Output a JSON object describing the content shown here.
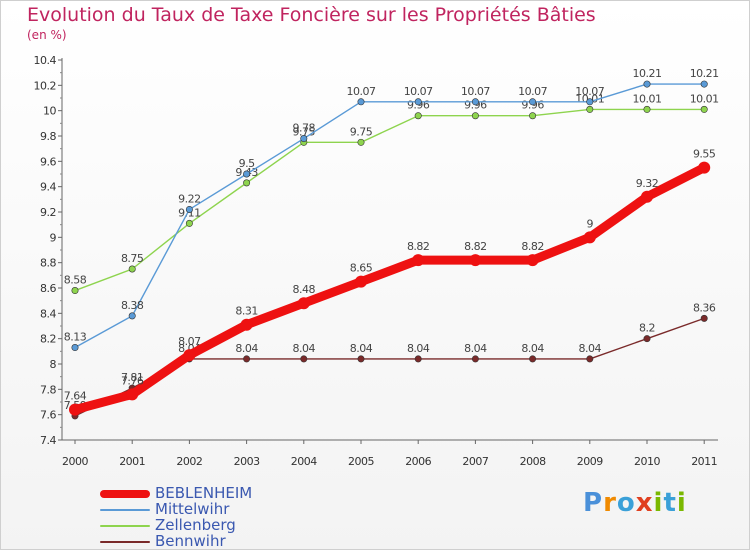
{
  "title": "Evolution du Taux de Taxe Foncière sur les Propriétés Bâties",
  "subtitle": "(en %)",
  "logo": {
    "text": "Proxiti",
    "letters": [
      "P",
      "r",
      "o",
      "x",
      "i",
      "t",
      "i"
    ],
    "colors": [
      "#4a90d9",
      "#f08a00",
      "#3aa0d8",
      "#e04020",
      "#7ab800",
      "#3aa0d8",
      "#7ab800"
    ]
  },
  "chart_data": {
    "type": "line",
    "title": "Evolution du Taux de Taxe Foncière sur les Propriétés Bâties",
    "ylabel": "(en %)",
    "categories": [
      "2000",
      "2001",
      "2002",
      "2003",
      "2004",
      "2005",
      "2006",
      "2007",
      "2008",
      "2009",
      "2010",
      "2011"
    ],
    "ylim": [
      7.4,
      10.4
    ],
    "yticks": [
      "7.4",
      "7.6",
      "7.8",
      "8",
      "8.2",
      "8.4",
      "8.6",
      "8.8",
      "9",
      "9.2",
      "9.4",
      "9.6",
      "9.8",
      "10",
      "10.2",
      "10.4"
    ],
    "series": [
      {
        "name": "Zellenberg",
        "color": "#8ed44e",
        "values": [
          8.58,
          8.75,
          9.11,
          9.43,
          9.75,
          9.75,
          9.96,
          9.96,
          9.96,
          10.01,
          10.01,
          10.01
        ],
        "labels": [
          "8.58",
          "8.75",
          "9.11",
          "9.43",
          "9.75",
          "9.75",
          "9.96",
          "9.96",
          "9.96",
          "10.01",
          "10.01",
          "10.01"
        ]
      },
      {
        "name": "Mittelwihr",
        "color": "#5a9ad6",
        "values": [
          8.13,
          8.38,
          9.22,
          9.5,
          9.78,
          10.07,
          10.07,
          10.07,
          10.07,
          10.07,
          10.21,
          10.21
        ],
        "labels": [
          "8.13",
          "8.38",
          "9.22",
          "9.5",
          "9.78",
          "10.07",
          "10.07",
          "10.07",
          "10.07",
          "10.07",
          "10.21",
          "10.21"
        ]
      },
      {
        "name": "Bennwihr",
        "color": "#7a2a2a",
        "values": [
          7.59,
          7.81,
          8.04,
          8.04,
          8.04,
          8.04,
          8.04,
          8.04,
          8.04,
          8.04,
          8.2,
          8.36
        ],
        "labels": [
          "7.59",
          "7.81",
          "8.04",
          "8.04",
          "8.04",
          "8.04",
          "8.04",
          "8.04",
          "8.04",
          "8.04",
          "8.2",
          "8.36"
        ]
      },
      {
        "name": "BEBLENHEIM",
        "color": "#ee1111",
        "values": [
          7.64,
          7.76,
          8.07,
          8.31,
          8.48,
          8.65,
          8.82,
          8.82,
          8.82,
          9,
          9.32,
          9.55
        ],
        "labels": [
          "7.64",
          "7.76",
          "8.07",
          "8.31",
          "8.48",
          "8.65",
          "8.82",
          "8.82",
          "8.82",
          "9",
          "9.32",
          "9.55"
        ]
      }
    ],
    "legend": [
      {
        "name": "BEBLENHEIM",
        "color": "#ee1111"
      },
      {
        "name": "Mittelwihr",
        "color": "#5a9ad6"
      },
      {
        "name": "Zellenberg",
        "color": "#8ed44e"
      },
      {
        "name": "Bennwihr",
        "color": "#7a2a2a"
      }
    ]
  }
}
